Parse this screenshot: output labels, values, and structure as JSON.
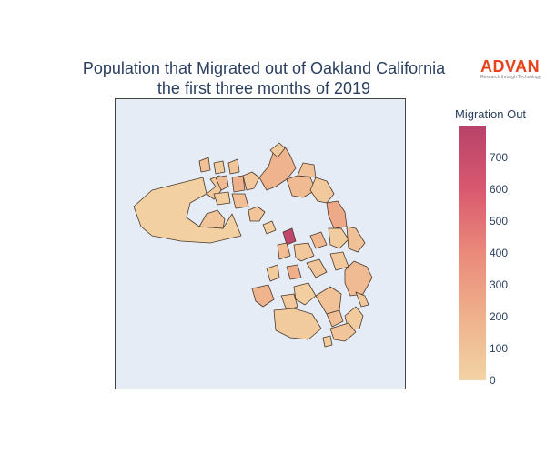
{
  "title": {
    "line1": "Population that Migrated out of Oakland California",
    "line2": "the first three months of 2019"
  },
  "logo": {
    "name": "ADVAN",
    "tagline": "Research through Technology"
  },
  "colorbar": {
    "title": "Migration Out",
    "min": 0,
    "max": 800,
    "ticks": [
      "0",
      "100",
      "200",
      "300",
      "400",
      "500",
      "600",
      "700"
    ]
  },
  "colors": {
    "low": "#f2d3a3",
    "mid": "#ea8a7a",
    "high": "#b8426a",
    "background": "#e5ecf6",
    "border": "#4a3a2e"
  },
  "map": {
    "region_count": 40,
    "regions": [
      {
        "value": 20
      },
      {
        "value": 90
      },
      {
        "value": 60
      },
      {
        "value": 110
      },
      {
        "value": 40
      },
      {
        "value": 150
      },
      {
        "value": 80
      },
      {
        "value": 200
      },
      {
        "value": 30
      },
      {
        "value": 120
      },
      {
        "value": 70
      },
      {
        "value": 180
      },
      {
        "value": 50
      },
      {
        "value": 140
      },
      {
        "value": 100
      },
      {
        "value": 60
      },
      {
        "value": 240
      },
      {
        "value": 90
      },
      {
        "value": 30
      },
      {
        "value": 760
      },
      {
        "value": 130
      },
      {
        "value": 70
      },
      {
        "value": 160
      },
      {
        "value": 40
      },
      {
        "value": 110
      },
      {
        "value": 50
      },
      {
        "value": 210
      },
      {
        "value": 80
      },
      {
        "value": 60
      },
      {
        "value": 140
      },
      {
        "value": 30
      },
      {
        "value": 100
      },
      {
        "value": 70
      },
      {
        "value": 190
      },
      {
        "value": 45
      },
      {
        "value": 120
      },
      {
        "value": 55
      },
      {
        "value": 85
      },
      {
        "value": 35
      },
      {
        "value": 65
      }
    ]
  }
}
